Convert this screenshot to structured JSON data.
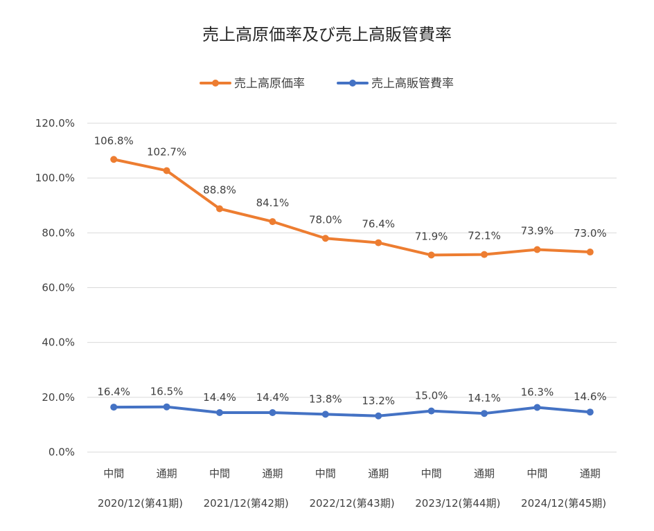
{
  "chart_data": {
    "type": "line",
    "title": "売上高原価率及び売上高販管費率",
    "categories": [
      "中間",
      "通期",
      "中間",
      "通期",
      "中間",
      "通期",
      "中間",
      "通期",
      "中間",
      "通期"
    ],
    "period_labels": [
      "2020/12(第41期)",
      "2021/12(第42期)",
      "2022/12(第43期)",
      "2023/12(第44期)",
      "2024/12(第45期)"
    ],
    "ylim": [
      0,
      120
    ],
    "y_ticks": [
      "0.0%",
      "20.0%",
      "40.0%",
      "60.0%",
      "80.0%",
      "100.0%",
      "120.0%"
    ],
    "grid": true,
    "legend_position": "top",
    "series": [
      {
        "name": "売上高原価率",
        "color": "#ED7D31",
        "values": [
          106.8,
          102.7,
          88.8,
          84.1,
          78.0,
          76.4,
          71.9,
          72.1,
          73.9,
          73.0
        ],
        "labels": [
          "106.8%",
          "102.7%",
          "88.8%",
          "84.1%",
          "78.0%",
          "76.4%",
          "71.9%",
          "72.1%",
          "73.9%",
          "73.0%"
        ]
      },
      {
        "name": "売上高販管費率",
        "color": "#4472C4",
        "values": [
          16.4,
          16.5,
          14.4,
          14.4,
          13.8,
          13.2,
          15.0,
          14.1,
          16.3,
          14.6
        ],
        "labels": [
          "16.4%",
          "16.5%",
          "14.4%",
          "14.4%",
          "13.8%",
          "13.2%",
          "15.0%",
          "14.1%",
          "16.3%",
          "14.6%"
        ]
      }
    ]
  }
}
